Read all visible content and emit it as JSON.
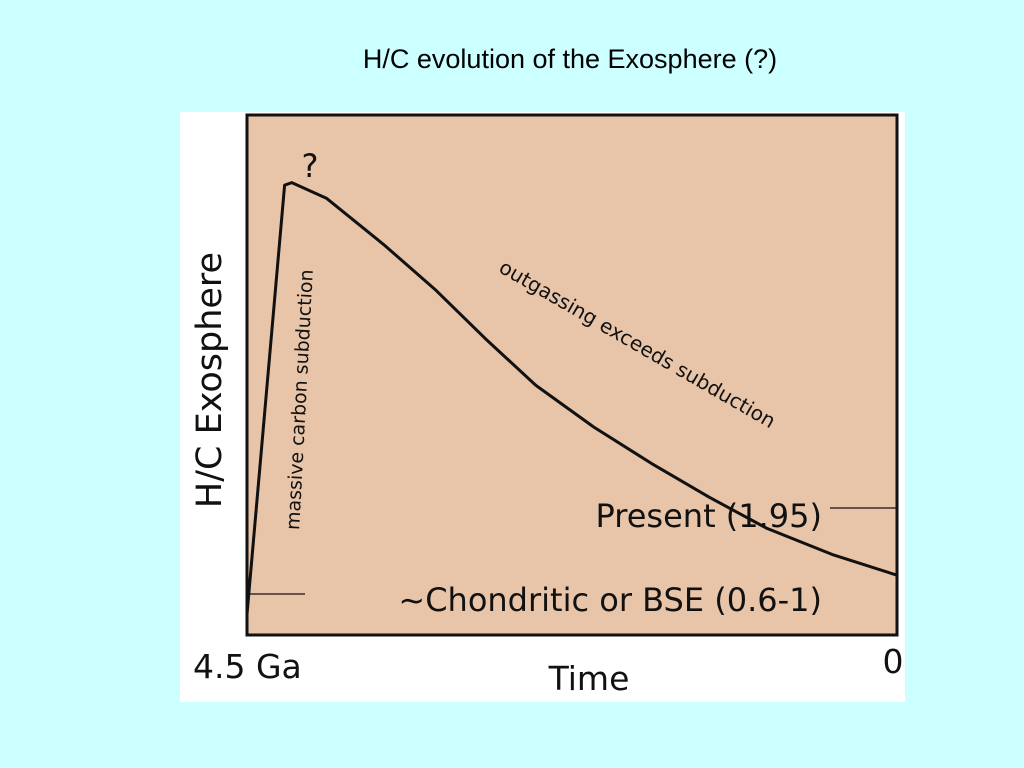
{
  "colors": {
    "background": "#ccffff",
    "figure_background": "#ffffff",
    "plot_area": "#e8c5a9",
    "line": "#111111"
  },
  "slide": {
    "title": "H/C evolution of the Exosphere (?)"
  },
  "chart_data": {
    "type": "line",
    "title": "",
    "xlabel": "Time",
    "ylabel": "H/C Exosphere",
    "x_tick_left": "4.5 Ga",
    "x_tick_right": "0",
    "question_mark": "?",
    "xlim": [
      4.5,
      0
    ],
    "ylim": [
      0,
      1
    ],
    "series": [
      {
        "x": [
          4.5,
          4.24,
          4.19,
          3.95,
          3.55,
          3.2,
          2.85,
          2.5,
          2.1,
          1.7,
          1.3,
          0.9,
          0.45,
          0.0
        ],
        "y": [
          0.04,
          0.865,
          0.87,
          0.84,
          0.75,
          0.665,
          0.57,
          0.48,
          0.4,
          0.33,
          0.265,
          0.205,
          0.155,
          0.115
        ]
      }
    ],
    "annotations": {
      "rise": "massive carbon subduction",
      "decline": "outgassing exceeds subduction",
      "present": "Present (1.95)",
      "initial": "~Chondritic or BSE (0.6-1)"
    }
  }
}
